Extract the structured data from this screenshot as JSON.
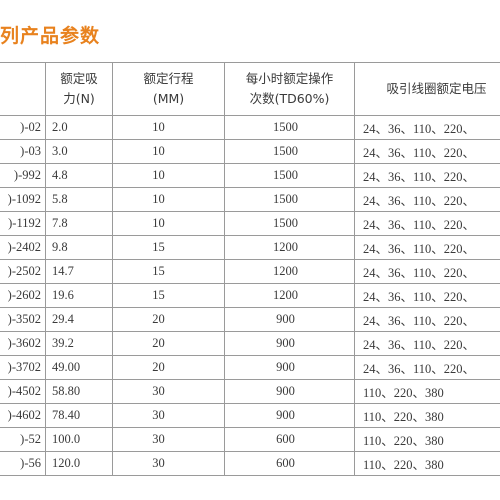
{
  "title": "列产品参数",
  "table": {
    "headers": [
      {
        "line1": "",
        "line2": ""
      },
      {
        "line1": "额定吸",
        "line2": "力(N)"
      },
      {
        "line1": "额定行程",
        "line2": "(MM)"
      },
      {
        "line1": "每小时额定操作",
        "line2": "次数(TD60%)"
      },
      {
        "line1": "吸引线圈额定电压",
        "line2": ""
      }
    ],
    "rows": [
      {
        "model": ")-02",
        "force": "2.0",
        "stroke": "10",
        "ops": "1500",
        "voltage": "24、36、110、220、"
      },
      {
        "model": ")-03",
        "force": "3.0",
        "stroke": "10",
        "ops": "1500",
        "voltage": "24、36、110、220、"
      },
      {
        "model": ")-992",
        "force": "4.8",
        "stroke": "10",
        "ops": "1500",
        "voltage": "24、36、110、220、"
      },
      {
        "model": ")-1092",
        "force": "5.8",
        "stroke": "10",
        "ops": "1500",
        "voltage": "24、36、110、220、"
      },
      {
        "model": ")-1192",
        "force": "7.8",
        "stroke": "10",
        "ops": "1500",
        "voltage": "24、36、110、220、"
      },
      {
        "model": ")-2402",
        "force": "9.8",
        "stroke": "15",
        "ops": "1200",
        "voltage": "24、36、110、220、"
      },
      {
        "model": ")-2502",
        "force": "14.7",
        "stroke": "15",
        "ops": "1200",
        "voltage": "24、36、110、220、"
      },
      {
        "model": ")-2602",
        "force": "19.6",
        "stroke": "15",
        "ops": "1200",
        "voltage": "24、36、110、220、"
      },
      {
        "model": ")-3502",
        "force": "29.4",
        "stroke": "20",
        "ops": "900",
        "voltage": "24、36、110、220、"
      },
      {
        "model": ")-3602",
        "force": "39.2",
        "stroke": "20",
        "ops": "900",
        "voltage": "24、36、110、220、"
      },
      {
        "model": ")-3702",
        "force": "49.00",
        "stroke": "20",
        "ops": "900",
        "voltage": "24、36、110、220、"
      },
      {
        "model": ")-4502",
        "force": "58.80",
        "stroke": "30",
        "ops": "900",
        "voltage": "110、220、380"
      },
      {
        "model": ")-4602",
        "force": "78.40",
        "stroke": "30",
        "ops": "900",
        "voltage": "110、220、380"
      },
      {
        "model": ")-52",
        "force": "100.0",
        "stroke": "30",
        "ops": "600",
        "voltage": "110、220、380"
      },
      {
        "model": ")-56",
        "force": "120.0",
        "stroke": "30",
        "ops": "600",
        "voltage": "110、220、380"
      }
    ]
  },
  "colors": {
    "title": "#e8821e",
    "border": "#9a9a9a",
    "text": "#3a3a3a"
  }
}
